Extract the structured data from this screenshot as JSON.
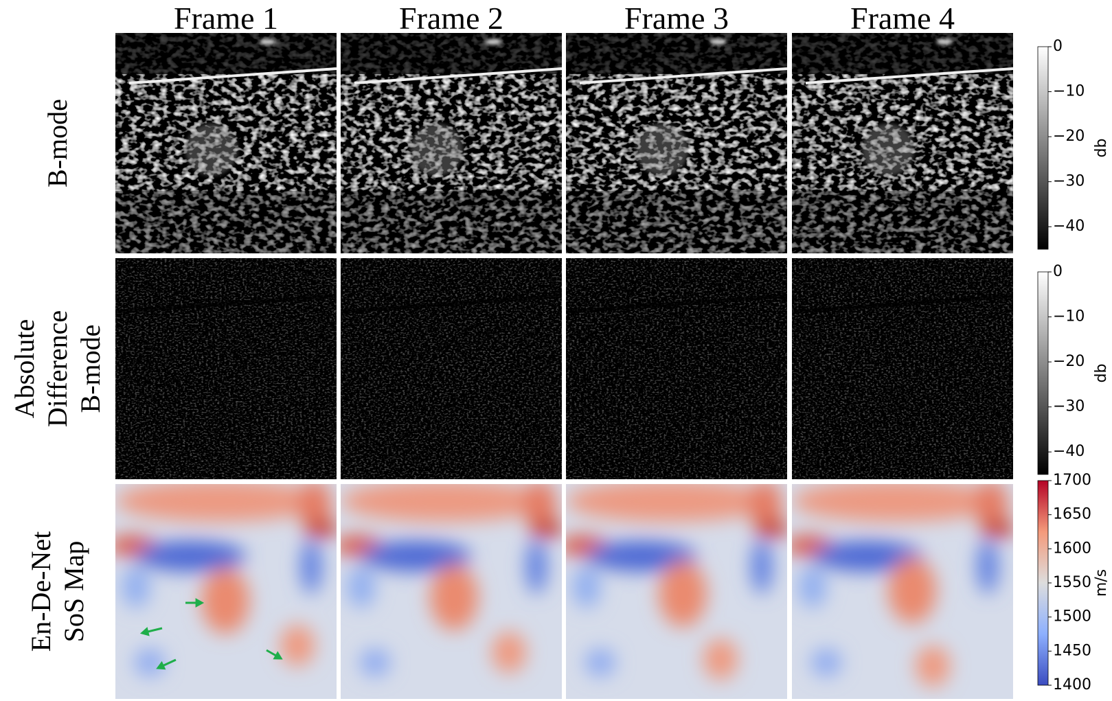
{
  "figure": {
    "columns": [
      "Frame 1",
      "Frame 2",
      "Frame 3",
      "Frame 4"
    ],
    "rows": [
      {
        "label": [
          "B-mode"
        ],
        "kind": "bmode",
        "colorbar": {
          "label": "db",
          "colormap": "gray",
          "lim": [
            -45,
            0
          ],
          "ticks": [
            0,
            {
              "value": -10,
              "label": "−10"
            },
            {
              "value": -20,
              "label": "−20"
            },
            {
              "value": -30,
              "label": "−30"
            },
            {
              "value": -40,
              "label": "−40"
            }
          ]
        }
      },
      {
        "label": [
          "Absolute",
          "Difference",
          "B-mode"
        ],
        "kind": "diff",
        "colorbar": {
          "label": "db",
          "colormap": "gray",
          "lim": [
            -45,
            0
          ],
          "ticks": [
            0,
            {
              "value": -10,
              "label": "−10"
            },
            {
              "value": -20,
              "label": "−20"
            },
            {
              "value": -30,
              "label": "−30"
            },
            {
              "value": -40,
              "label": "−40"
            }
          ]
        }
      },
      {
        "label": [
          "En-De-Net",
          "SoS Map"
        ],
        "kind": "sos",
        "colorbar": {
          "label": "m/s",
          "colormap": "coolwarm",
          "lim": [
            1400,
            1700
          ],
          "ticks": [
            1700,
            1650,
            1600,
            1550,
            1500,
            1450,
            1400
          ]
        }
      }
    ]
  }
}
